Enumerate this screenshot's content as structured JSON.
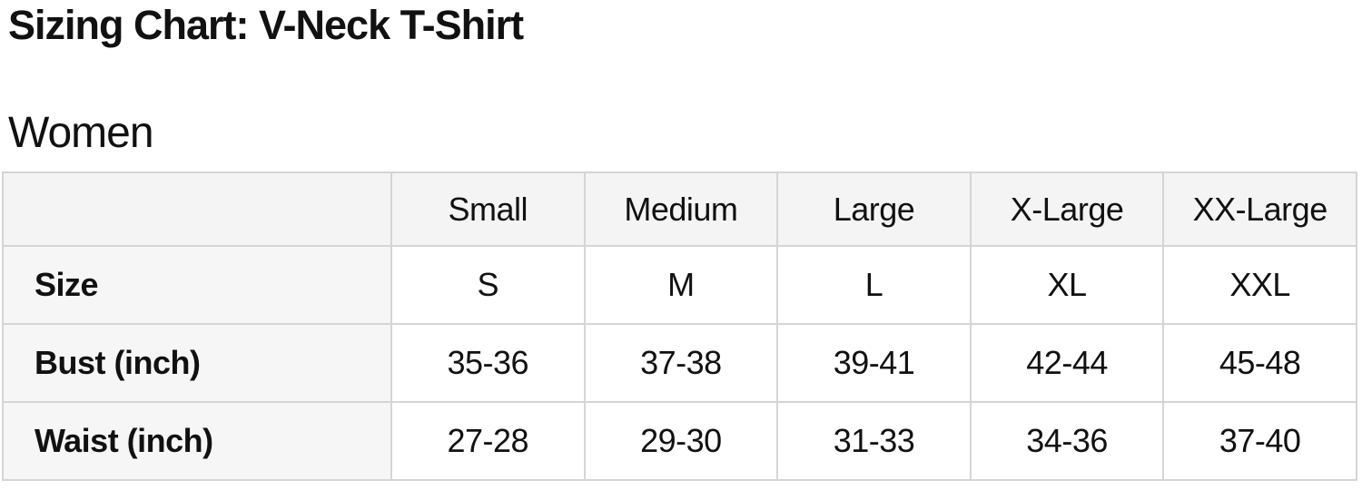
{
  "page": {
    "title": "Sizing Chart: V-Neck T-Shirt",
    "section": "Women"
  },
  "table": {
    "corner_label": "",
    "columns": [
      "Small",
      "Medium",
      "Large",
      "X-Large",
      "XX-Large"
    ],
    "rows": [
      {
        "label": "Size",
        "values": [
          "S",
          "M",
          "L",
          "XL",
          "XXL"
        ]
      },
      {
        "label": "Bust (inch)",
        "values": [
          "35-36",
          "37-38",
          "39-41",
          "42-44",
          "45-48"
        ]
      },
      {
        "label": "Waist (inch)",
        "values": [
          "27-28",
          "29-30",
          "31-33",
          "34-36",
          "37-40"
        ]
      }
    ]
  },
  "colors": {
    "header_bg": "#f4f4f4",
    "label_bg": "#f6f6f6",
    "cell_bg": "#ffffff",
    "border": "#d5d5d5",
    "text": "#111111"
  }
}
